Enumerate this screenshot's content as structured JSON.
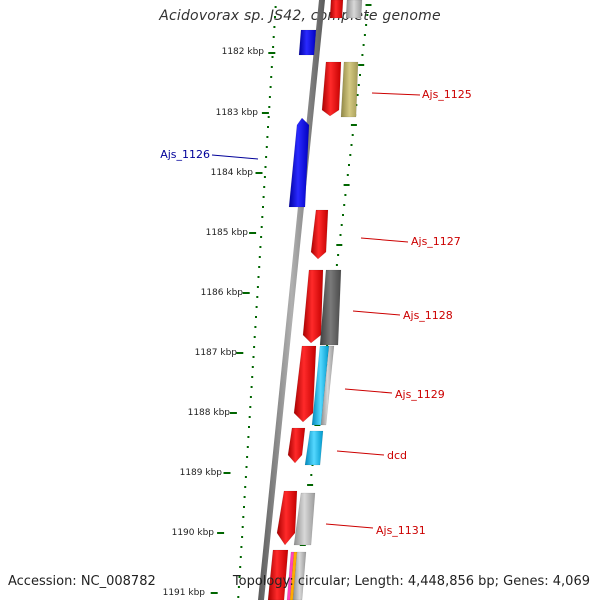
{
  "header": {
    "title": "Acidovorax sp. JS42, complete genome"
  },
  "footer": {
    "accession": "Accession: NC_008782",
    "summary": "Topology: circular; Length: 4,448,856 bp; Genes: 4,069"
  },
  "ruler": {
    "tick_labels": [
      "1182 kbp",
      "1183 kbp",
      "1184 kbp",
      "1185 kbp",
      "1186 kbp",
      "1187 kbp",
      "1188 kbp",
      "1189 kbp",
      "1190 kbp",
      "1191 kbp"
    ]
  },
  "genes": {
    "forward": [
      "Ajs_1125",
      "Ajs_1127",
      "Ajs_1128",
      "Ajs_1129",
      "dcd",
      "Ajs_1131"
    ],
    "reverse": [
      "Ajs_1126"
    ]
  },
  "colors": {
    "forward_cds": "#ee0000",
    "reverse_cds": "#0000ee",
    "forward_label": "#cc0000",
    "reverse_label": "#000099",
    "backbone": "#707070",
    "ruler_dots": "#006600",
    "feature_khaki": "#bfb36a",
    "feature_dark_gray": "#606060",
    "feature_light_gray": "#b4b4b4",
    "feature_cyan": "#22bbee"
  }
}
